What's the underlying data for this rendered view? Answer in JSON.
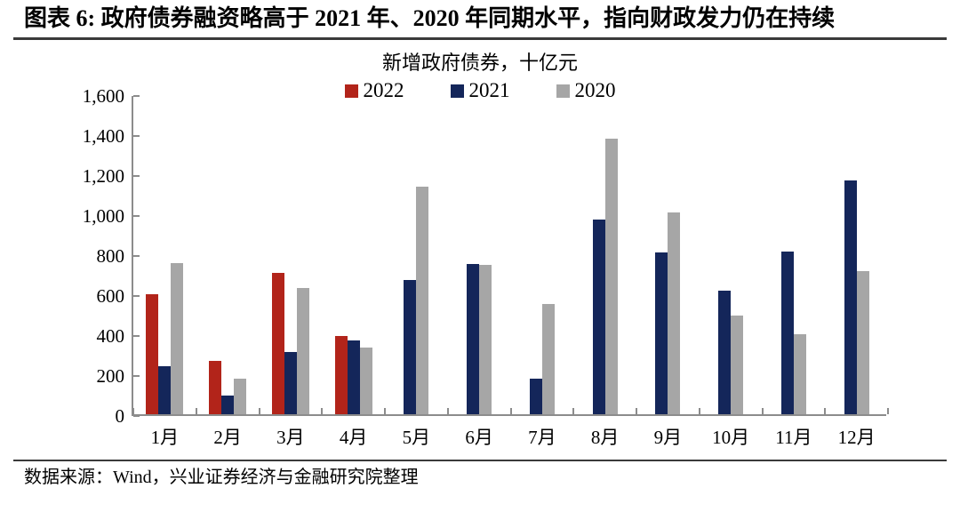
{
  "header": {
    "title": "图表 6: 政府债券融资略高于 2021 年、2020 年同期水平，指向财政发力仍在持续"
  },
  "chart_data": {
    "type": "bar",
    "title": "新增政府债券，十亿元",
    "categories": [
      "1月",
      "2月",
      "3月",
      "4月",
      "5月",
      "6月",
      "7月",
      "8月",
      "9月",
      "10月",
      "11月",
      "12月"
    ],
    "series": [
      {
        "name": "2022",
        "color": "#b2241a",
        "values": [
          600,
          265,
          705,
          390,
          null,
          null,
          null,
          null,
          null,
          null,
          null,
          null
        ]
      },
      {
        "name": "2021",
        "color": "#14265a",
        "values": [
          240,
          95,
          310,
          370,
          670,
          750,
          180,
          975,
          810,
          620,
          815,
          1170
        ]
      },
      {
        "name": "2020",
        "color": "#a6a6a6",
        "values": [
          755,
          180,
          630,
          335,
          1140,
          745,
          550,
          1380,
          1010,
          495,
          400,
          715
        ]
      }
    ],
    "xlabel": "",
    "ylabel": "",
    "ylim": [
      0,
      1600
    ],
    "ytick_step": 200,
    "ytick_labels": [
      "0",
      "200",
      "400",
      "600",
      "800",
      "1,000",
      "1,200",
      "1,400",
      "1,600"
    ],
    "legend_position": "top",
    "grid": false,
    "axis_color": "#8c8c8c"
  },
  "footer": {
    "source": "数据来源：Wind，兴业证券经济与金融研究院整理"
  }
}
